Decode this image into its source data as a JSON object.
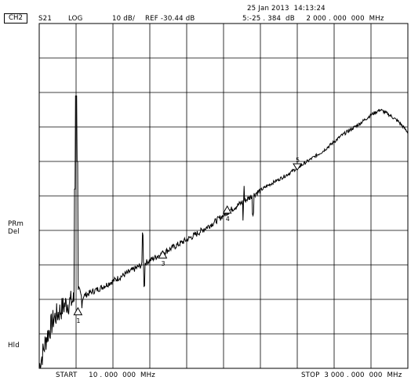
{
  "header": {
    "datetime": "25 Jan 2013  14:13:24",
    "channel": "CH2",
    "param": "S21",
    "format": "LOG",
    "scale": "10 dB/",
    "ref": "REF -30.44 dB",
    "marker_readout": "5:-25 . 384  dB     2 000 . 000  000  MHz"
  },
  "side": {
    "label1": "PRm",
    "label2": "Del",
    "label3": "Hld"
  },
  "footer": {
    "start": "START     10 . 000  000  MHz",
    "stop": "STOP  3 000 . 000  000  MHz"
  },
  "markers": [
    {
      "label": "1",
      "freq_frac": 0.105,
      "level_div": 1.55,
      "direction": "up"
    },
    {
      "label": "3",
      "freq_frac": 0.335,
      "level_div": 3.2,
      "direction": "up"
    },
    {
      "label": "4",
      "freq_frac": 0.51,
      "level_div": 4.5,
      "direction": "up"
    },
    {
      "label": "5",
      "freq_frac": 0.7,
      "level_div": 5.75,
      "direction": "down"
    }
  ],
  "colors": {
    "trace": "#000000",
    "grid": "#000000",
    "background": "#ffffff"
  }
}
